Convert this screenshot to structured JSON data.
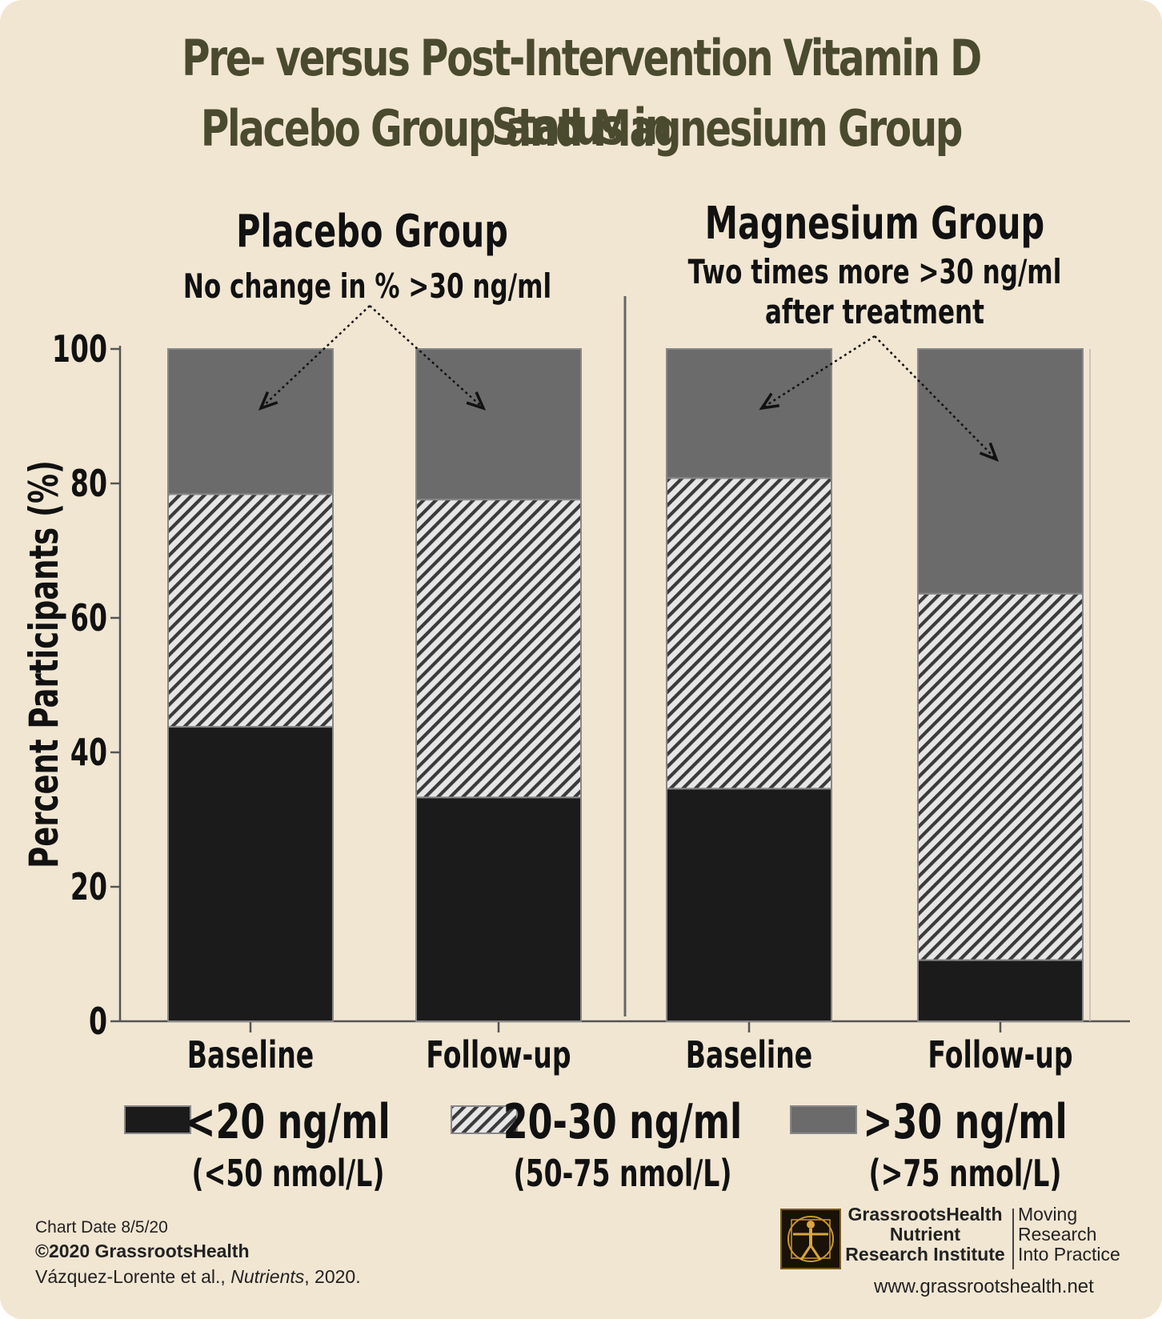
{
  "chart_data": {
    "type": "stacked-bar",
    "title": [
      "Pre- versus Post-Intervention Vitamin D Status in",
      "Placebo Group and Magnesium Group"
    ],
    "ylabel": "Percent Participants (%)",
    "ylim": [
      0,
      100
    ],
    "yticks": [
      "0",
      "20",
      "40",
      "60",
      "80",
      "100"
    ],
    "groups": [
      {
        "name": "Placebo Group",
        "note": [
          "No change in % >30 ng/ml"
        ],
        "bars": [
          {
            "category": "Baseline",
            "values": [
              43.8,
              34.6,
              21.6
            ]
          },
          {
            "category": "Follow-up",
            "values": [
              33.3,
              44.3,
              22.4
            ]
          }
        ]
      },
      {
        "name": "Magnesium Group",
        "note": [
          "Two times more >30 ng/ml",
          "after treatment"
        ],
        "bars": [
          {
            "category": "Baseline",
            "values": [
              34.6,
              46.2,
              19.2
            ]
          },
          {
            "category": "Follow-up",
            "values": [
              9.1,
              54.5,
              36.4
            ]
          }
        ]
      }
    ],
    "series": [
      {
        "name": "<20 ng/ml",
        "sub": "(<50 nmol/L)",
        "fill": "#1b1b1b"
      },
      {
        "name": "20-30 ng/ml",
        "sub": "(50-75 nmol/L)",
        "fill": "hatch"
      },
      {
        "name": ">30 ng/ml",
        "sub": "(>75 nmol/L)",
        "fill": "#6b6b6b"
      }
    ],
    "legend": "bottom",
    "grid": false
  },
  "footer": {
    "chart_date": "Chart Date 8/5/20",
    "copyright": "©2020 GrassrootsHealth",
    "citation_authors": "Vázquez-Lorente et al., ",
    "citation_journal": "Nutrients",
    "citation_year": ", 2020."
  },
  "branding": {
    "org_line1": "GrassrootsHealth",
    "org_line2": "Nutrient",
    "org_line3": "Research Institute",
    "tagline1": "Moving",
    "tagline2": "Research",
    "tagline3": "Into Practice",
    "website": "www.grassrootshealth.net"
  },
  "colors": {
    "background": "#f1e6d2",
    "title": "#4a4a2e",
    "low": "#1b1b1b",
    "high": "#6b6b6b"
  }
}
